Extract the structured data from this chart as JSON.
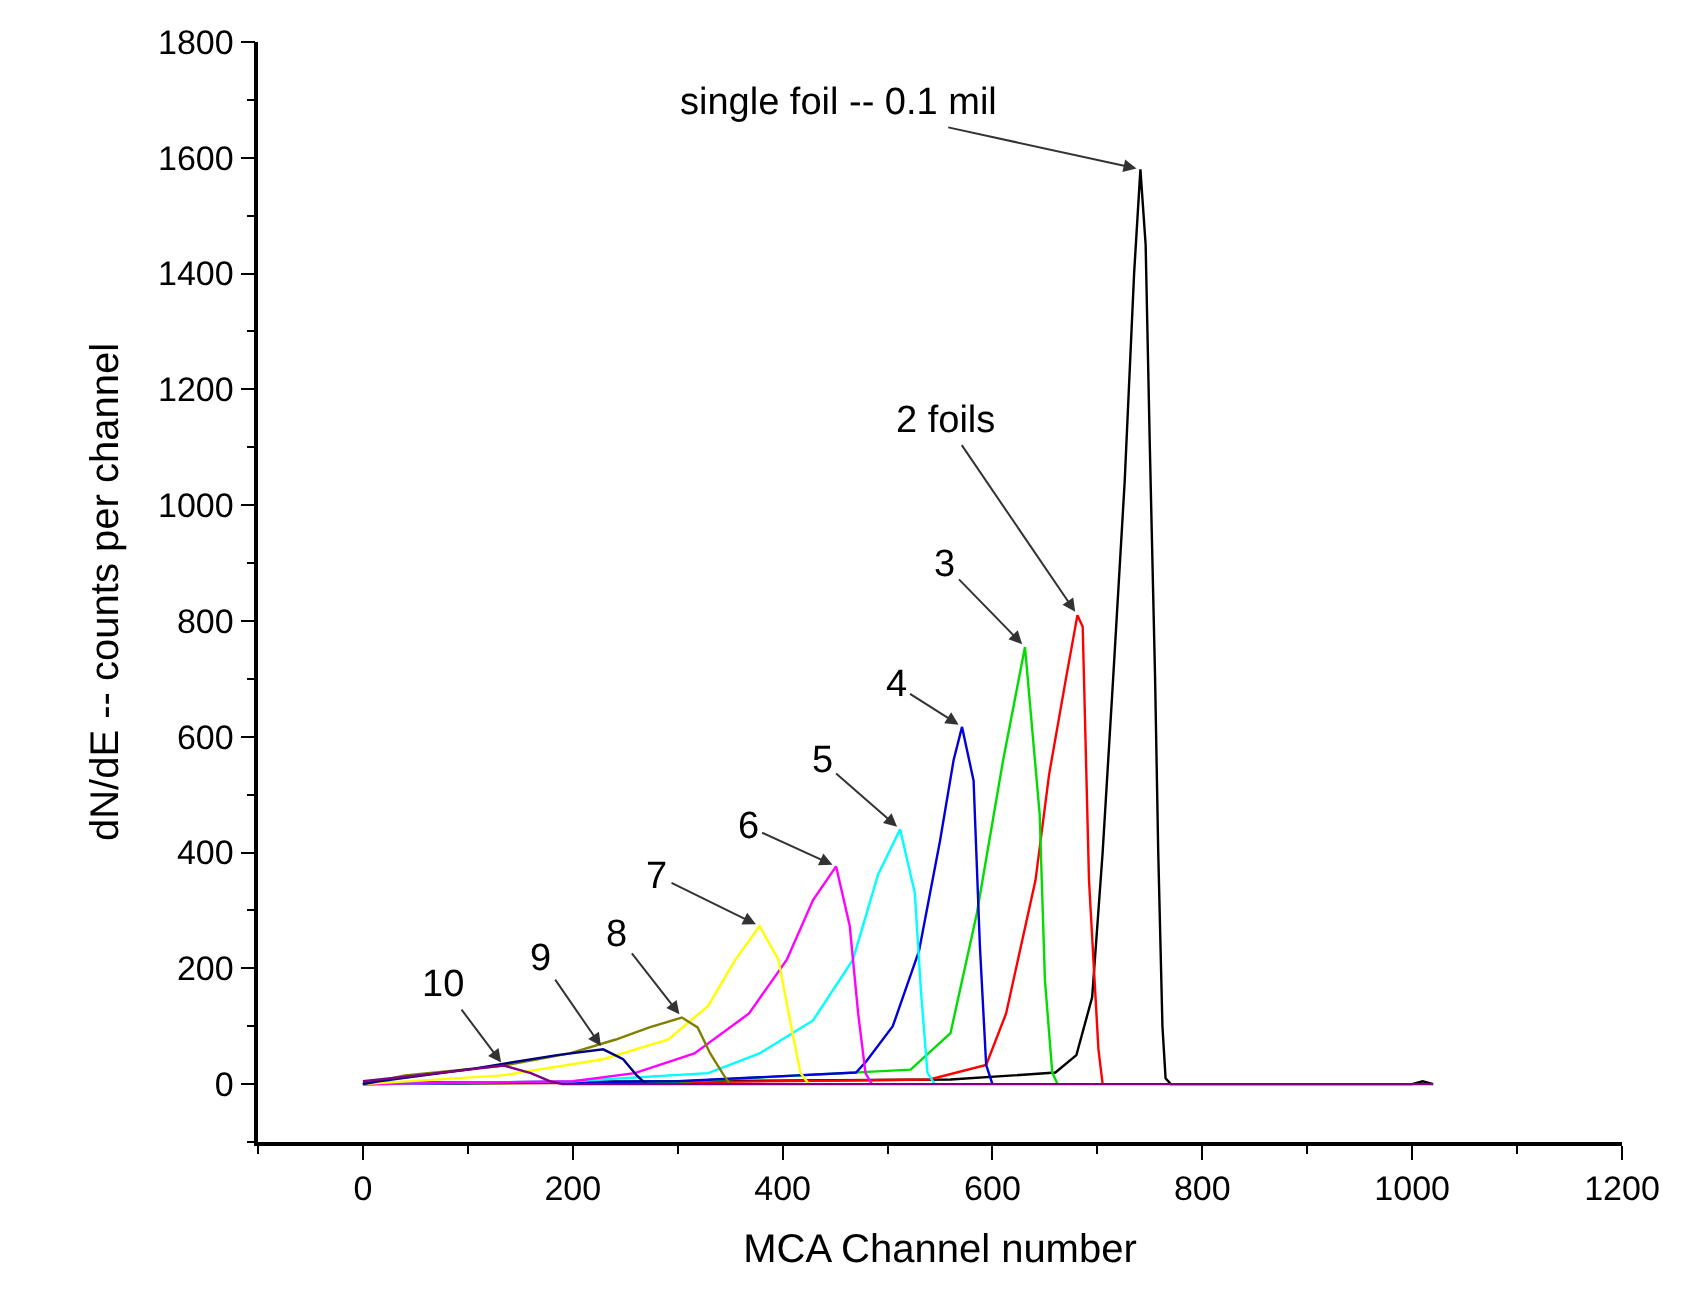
{
  "chart_data": {
    "type": "line",
    "xlabel": "MCA Channel number",
    "ylabel": "dN/dE -- counts per channel",
    "xlim": [
      -100,
      1200
    ],
    "ylim": [
      -100,
      1800
    ],
    "xticks": [
      {
        "value": -100,
        "label": null
      },
      0,
      {
        "value": 100,
        "label": null
      },
      200,
      {
        "value": 300,
        "label": null
      },
      400,
      {
        "value": 500,
        "label": null
      },
      600,
      {
        "value": 700,
        "label": null
      },
      800,
      {
        "value": 900,
        "label": null
      },
      1000,
      {
        "value": 1100,
        "label": null
      },
      1200
    ],
    "yticks": [
      {
        "value": -100,
        "label": null
      },
      0,
      {
        "value": 100,
        "label": null
      },
      200,
      {
        "value": 300,
        "label": null
      },
      400,
      {
        "value": 500,
        "label": null
      },
      600,
      {
        "value": 700,
        "label": null
      },
      800,
      {
        "value": 900,
        "label": null
      },
      1000,
      {
        "value": 1100,
        "label": null
      },
      1200,
      {
        "value": 1300,
        "label": null
      },
      1400,
      {
        "value": 1500,
        "label": null
      },
      1600,
      {
        "value": 1700,
        "label": null
      },
      1800
    ],
    "grid": false,
    "marker": "none",
    "line_style": "solid",
    "series": [
      {
        "color": "#000000",
        "x": [
          0,
          300,
          560,
          620,
          660,
          680,
          695,
          705,
          715,
          726,
          735,
          741,
          746,
          750,
          755,
          758,
          762,
          765,
          770,
          1000,
          1010,
          1020
        ],
        "values": [
          2,
          5,
          8,
          15,
          20,
          50,
          150,
          400,
          700,
          1040,
          1400,
          1580,
          1450,
          1100,
          700,
          400,
          100,
          10,
          0,
          0,
          5,
          0
        ]
      },
      {
        "color": "#ff0000",
        "x": [
          0,
          300,
          540,
          594,
          613,
          641,
          654,
          670,
          681,
          686,
          692,
          701,
          705
        ],
        "values": [
          0,
          3,
          8,
          33,
          122,
          352,
          535,
          700,
          810,
          790,
          352,
          60,
          0
        ]
      },
      {
        "color": "#00dd00",
        "x": [
          0,
          300,
          522,
          560,
          585,
          610,
          631,
          645,
          650,
          657,
          662
        ],
        "values": [
          0,
          4,
          25,
          88,
          294,
          558,
          755,
          466,
          180,
          20,
          0
        ]
      },
      {
        "color": "#0000dd",
        "x": [
          0,
          300,
          470,
          480,
          505,
          530,
          550,
          563,
          571,
          582,
          588,
          594,
          600
        ],
        "values": [
          0,
          5,
          20,
          40,
          100,
          230,
          420,
          560,
          617,
          524,
          239,
          33,
          0
        ]
      },
      {
        "color": "#00ffff",
        "x": [
          0,
          200,
          329,
          378,
          429,
          467,
          491,
          512,
          526,
          532,
          538,
          545
        ],
        "values": [
          0,
          5,
          19,
          53,
          110,
          215,
          362,
          440,
          330,
          157,
          20,
          0
        ]
      },
      {
        "color": "#ff00ff",
        "x": [
          0,
          200,
          259,
          316,
          368,
          404,
          429,
          451,
          464,
          472,
          479,
          485
        ],
        "values": [
          0,
          5,
          19,
          53,
          122,
          215,
          318,
          376,
          273,
          122,
          19,
          0
        ]
      },
      {
        "color": "#ffff00",
        "x": [
          0,
          133,
          229,
          291,
          329,
          355,
          378,
          396,
          408,
          417,
          425
        ],
        "values": [
          0,
          15,
          43,
          77,
          135,
          215,
          273,
          215,
          101,
          19,
          0
        ]
      },
      {
        "color": "#808000",
        "x": [
          0,
          40,
          134,
          197,
          241,
          273,
          304,
          319,
          331,
          344,
          350
        ],
        "values": [
          0,
          15,
          32,
          53,
          77,
          98,
          115,
          98,
          53,
          15,
          0
        ]
      },
      {
        "color": "#000080",
        "x": [
          0,
          15,
          103,
          185,
          229,
          248,
          261,
          270
        ],
        "values": [
          0,
          5,
          26,
          50,
          60,
          43,
          15,
          0
        ]
      },
      {
        "color": "#800080",
        "x": [
          0,
          72,
          134,
          160,
          178,
          190,
          1020
        ],
        "values": [
          5,
          19,
          32,
          19,
          5,
          0,
          0
        ]
      }
    ],
    "annotations": [
      {
        "text": "single foil -- 0.1 mil",
        "x": 741,
        "y": 1580
      },
      {
        "text": "2 foils",
        "x": 681,
        "y": 810
      },
      {
        "text": "3",
        "x": 631,
        "y": 755
      },
      {
        "text": "4",
        "x": 571,
        "y": 617
      },
      {
        "text": "5",
        "x": 512,
        "y": 440
      },
      {
        "text": "6",
        "x": 451,
        "y": 376
      },
      {
        "text": "7",
        "x": 378,
        "y": 273
      },
      {
        "text": "8",
        "x": 304,
        "y": 115
      },
      {
        "text": "9",
        "x": 229,
        "y": 60
      },
      {
        "text": "10",
        "x": 134,
        "y": 32
      }
    ]
  }
}
